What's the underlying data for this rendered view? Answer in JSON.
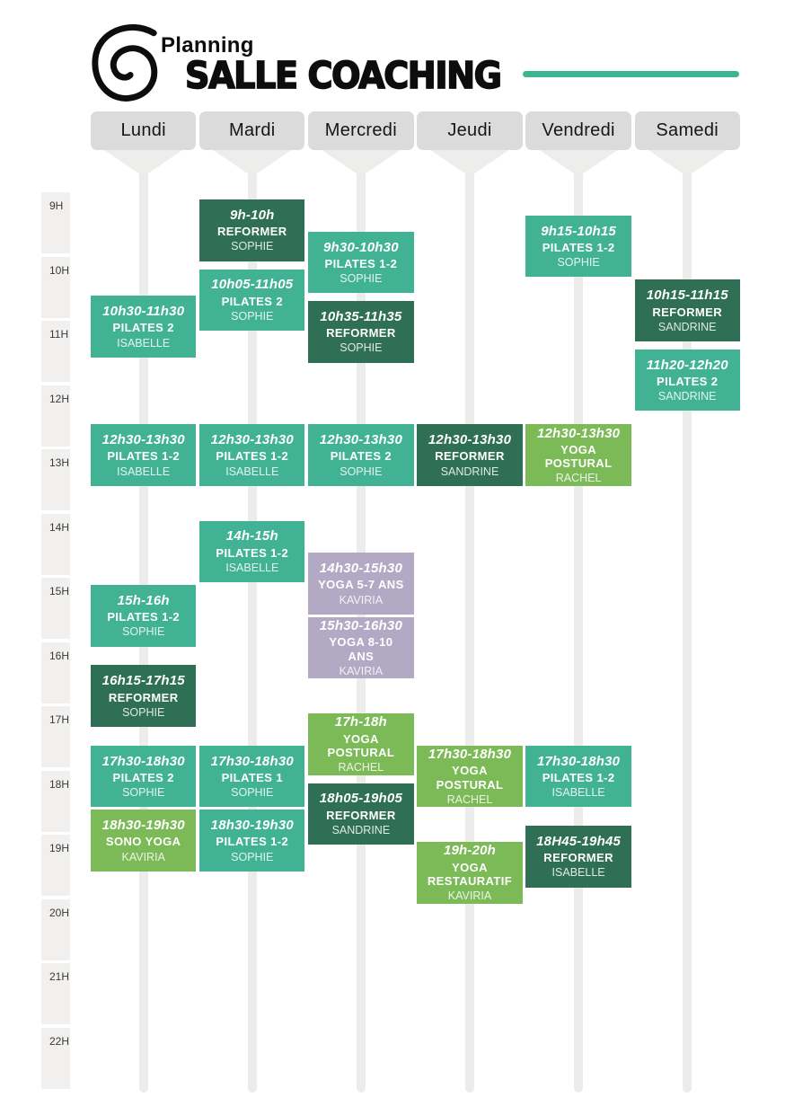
{
  "header": {
    "planning_label": "Planning",
    "title": "SALLE COACHING"
  },
  "colors": {
    "teal": "#41B394",
    "dark_green": "#2E6F56",
    "light_green": "#7CBA57",
    "purple": "#B2A9C5",
    "accent_line": "#3DB592",
    "day_header_bg": "#DBDBDB",
    "pointer_gray": "#EDEDEB",
    "track_gray": "#ECECEA",
    "gutter_bg": "#F1F0EE",
    "day_text": "#161616",
    "hour_text": "#3A3A3A"
  },
  "days": [
    {
      "id": "lundi",
      "label": "Lundi"
    },
    {
      "id": "mardi",
      "label": "Mardi"
    },
    {
      "id": "mercredi",
      "label": "Mercredi"
    },
    {
      "id": "jeudi",
      "label": "Jeudi"
    },
    {
      "id": "vendredi",
      "label": "Vendredi"
    },
    {
      "id": "samedi",
      "label": "Samedi"
    }
  ],
  "hours": [
    "9H",
    "10H",
    "11H",
    "12H",
    "13H",
    "14H",
    "15H",
    "16H",
    "17H",
    "18H",
    "19H",
    "20H",
    "21H",
    "22H"
  ],
  "events": [
    {
      "day": "lundi",
      "start": 10.5,
      "end": 11.5,
      "time": "10h30-11h30",
      "activity": "PILATES 2",
      "instructor": "ISABELLE",
      "color": "teal"
    },
    {
      "day": "lundi",
      "start": 12.5,
      "end": 13.5,
      "time": "12h30-13h30",
      "activity": "PILATES 1-2",
      "instructor": "ISABELLE",
      "color": "teal"
    },
    {
      "day": "lundi",
      "start": 15,
      "end": 16,
      "time": "15h-16h",
      "activity": "PILATES 1-2",
      "instructor": "SOPHIE",
      "color": "teal"
    },
    {
      "day": "lundi",
      "start": 16.25,
      "end": 17.25,
      "time": "16h15-17h15",
      "activity": "REFORMER",
      "instructor": "SOPHIE",
      "color": "dark_green"
    },
    {
      "day": "lundi",
      "start": 17.5,
      "end": 18.5,
      "time": "17h30-18h30",
      "activity": "PILATES 2",
      "instructor": "SOPHIE",
      "color": "teal"
    },
    {
      "day": "lundi",
      "start": 18.5,
      "end": 19.5,
      "time": "18h30-19h30",
      "activity": "SONO YOGA",
      "instructor": "KAVIRIA",
      "color": "light_green"
    },
    {
      "day": "mardi",
      "start": 9,
      "end": 10,
      "time": "9h-10h",
      "activity": "REFORMER",
      "instructor": "SOPHIE",
      "color": "dark_green"
    },
    {
      "day": "mardi",
      "start": 10.0833,
      "end": 11.0833,
      "time": "10h05-11h05",
      "activity": "PILATES 2",
      "instructor": "SOPHIE",
      "color": "teal"
    },
    {
      "day": "mardi",
      "start": 12.5,
      "end": 13.5,
      "time": "12h30-13h30",
      "activity": "PILATES 1-2",
      "instructor": "ISABELLE",
      "color": "teal"
    },
    {
      "day": "mardi",
      "start": 14,
      "end": 15,
      "time": "14h-15h",
      "activity": "PILATES 1-2",
      "instructor": "ISABELLE",
      "color": "teal"
    },
    {
      "day": "mardi",
      "start": 17.5,
      "end": 18.5,
      "time": "17h30-18h30",
      "activity": "PILATES 1",
      "instructor": "SOPHIE",
      "color": "teal"
    },
    {
      "day": "mardi",
      "start": 18.5,
      "end": 19.5,
      "time": "18h30-19h30",
      "activity": "PILATES 1-2",
      "instructor": "SOPHIE",
      "color": "teal"
    },
    {
      "day": "mercredi",
      "start": 9.5,
      "end": 10.5,
      "time": "9h30-10h30",
      "activity": "PILATES 1-2",
      "instructor": "SOPHIE",
      "color": "teal"
    },
    {
      "day": "mercredi",
      "start": 10.5833,
      "end": 11.5833,
      "time": "10h35-11h35",
      "activity": "REFORMER",
      "instructor": "SOPHIE",
      "color": "dark_green"
    },
    {
      "day": "mercredi",
      "start": 12.5,
      "end": 13.5,
      "time": "12h30-13h30",
      "activity": "PILATES 2",
      "instructor": "SOPHIE",
      "color": "teal"
    },
    {
      "day": "mercredi",
      "start": 14.5,
      "end": 15.5,
      "time": "14h30-15h30",
      "activity": "YOGA 5-7 ANS",
      "instructor": "KAVIRIA",
      "color": "purple"
    },
    {
      "day": "mercredi",
      "start": 15.5,
      "end": 16.5,
      "time": "15h30-16h30",
      "activity": "YOGA 8-10 ANS",
      "instructor": "KAVIRIA",
      "color": "purple"
    },
    {
      "day": "mercredi",
      "start": 17,
      "end": 18,
      "time": "17h-18h",
      "activity": "YOGA POSTURAL",
      "instructor": "RACHEL",
      "color": "light_green"
    },
    {
      "day": "mercredi",
      "start": 18.0833,
      "end": 19.0833,
      "time": "18h05-19h05",
      "activity": "REFORMER",
      "instructor": "SANDRINE",
      "color": "dark_green"
    },
    {
      "day": "jeudi",
      "start": 12.5,
      "end": 13.5,
      "time": "12h30-13h30",
      "activity": "REFORMER",
      "instructor": "SANDRINE",
      "color": "dark_green"
    },
    {
      "day": "jeudi",
      "start": 17.5,
      "end": 18.5,
      "time": "17h30-18h30",
      "activity": "YOGA POSTURAL",
      "instructor": "RACHEL",
      "color": "light_green"
    },
    {
      "day": "jeudi",
      "start": 19,
      "end": 20,
      "time": "19h-20h",
      "activity": "YOGA RESTAURATIF",
      "instructor": "KAVIRIA",
      "color": "light_green"
    },
    {
      "day": "vendredi",
      "start": 9.25,
      "end": 10.25,
      "time": "9h15-10h15",
      "activity": "PILATES 1-2",
      "instructor": "SOPHIE",
      "color": "teal"
    },
    {
      "day": "vendredi",
      "start": 12.5,
      "end": 13.5,
      "time": "12h30-13h30",
      "activity": "YOGA POSTURAL",
      "instructor": "RACHEL",
      "color": "light_green"
    },
    {
      "day": "vendredi",
      "start": 17.5,
      "end": 18.5,
      "time": "17h30-18h30",
      "activity": "PILATES 1-2",
      "instructor": "ISABELLE",
      "color": "teal"
    },
    {
      "day": "vendredi",
      "start": 18.75,
      "end": 19.75,
      "time": "18H45-19h45",
      "activity": "REFORMER",
      "instructor": "ISABELLE",
      "color": "dark_green"
    },
    {
      "day": "samedi",
      "start": 10.25,
      "end": 11.25,
      "time": "10h15-11h15",
      "activity": "REFORMER",
      "instructor": "SANDRINE",
      "color": "dark_green"
    },
    {
      "day": "samedi",
      "start": 11.3333,
      "end": 12.3333,
      "time": "11h20-12h20",
      "activity": "PILATES 2",
      "instructor": "SANDRINE",
      "color": "teal"
    }
  ]
}
